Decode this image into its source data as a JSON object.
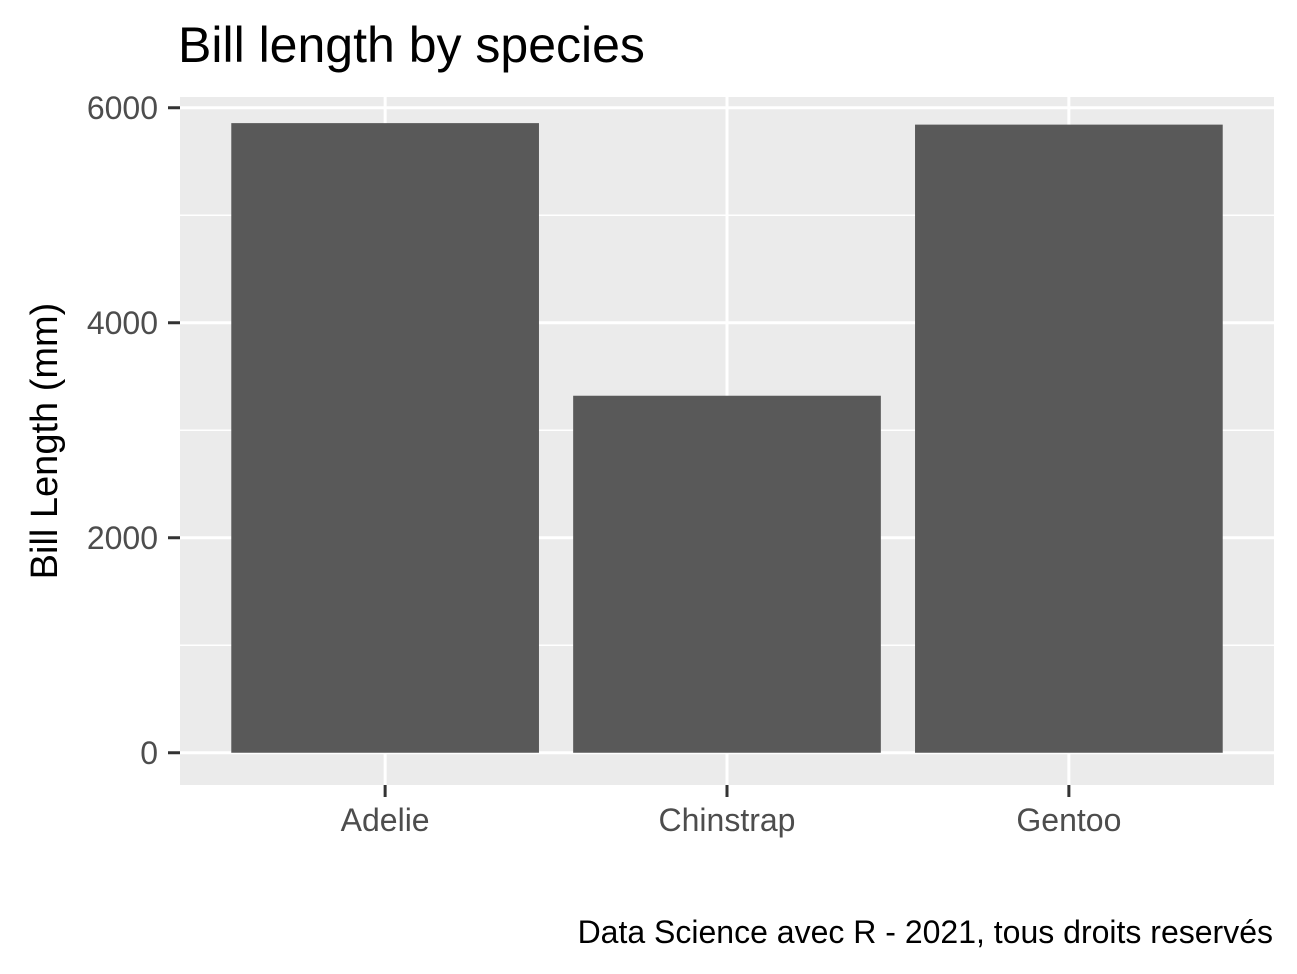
{
  "chart_data": {
    "type": "bar",
    "title": "Bill length by species",
    "xlabel": "",
    "ylabel": "Bill Length (mm)",
    "caption": "Data Science avec R - 2021, tous droits reservés",
    "categories": [
      "Adelie",
      "Chinstrap",
      "Gentoo"
    ],
    "values": [
      5857,
      3321,
      5843
    ],
    "ylim": [
      -300,
      6100
    ],
    "yticks": [
      0,
      2000,
      4000,
      6000
    ],
    "ytick_labels": [
      "0",
      "2000",
      "4000",
      "6000"
    ],
    "y_minor_gridlines": [
      1000,
      3000,
      5000
    ],
    "grid": true,
    "legend": "none",
    "colors": {
      "panel_background": "#ebebeb",
      "gridline": "#ffffff",
      "bar_fill": "#595959",
      "tick_mark": "#333333",
      "tick_label": "#4d4d4d"
    }
  }
}
